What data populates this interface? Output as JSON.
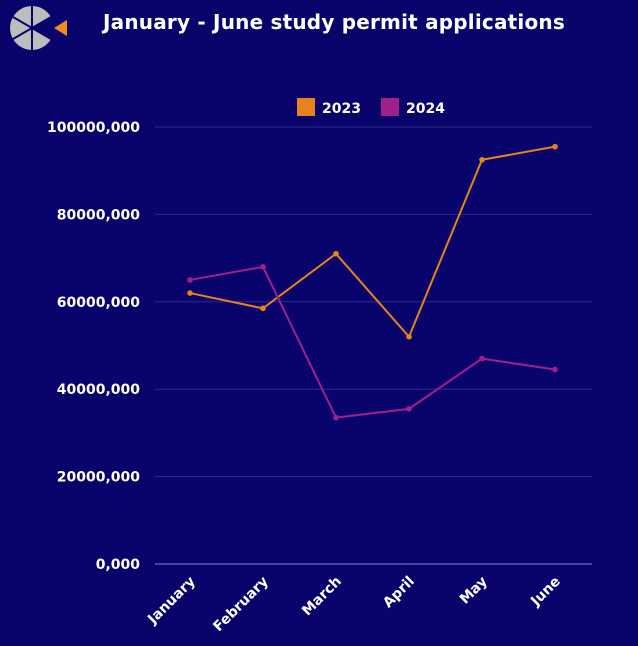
{
  "title": "January - June study permit applications",
  "colors": {
    "background": "#08046b",
    "series_2023": "#e8821c",
    "series_2024": "#a1208a",
    "grid": "#2a2a8a",
    "logo_grey": "#bdbdbd",
    "logo_orange": "#f28a1e"
  },
  "chart_data": {
    "type": "line",
    "title": "January - June study permit applications",
    "categories": [
      "January",
      "February",
      "March",
      "April",
      "May",
      "June"
    ],
    "series": [
      {
        "name": "2023",
        "color": "#e8821c",
        "values": [
          62000000,
          58500000,
          71000000,
          52000000,
          92500000,
          95500000
        ]
      },
      {
        "name": "2024",
        "color": "#a1208a",
        "values": [
          65000000,
          68000000,
          33500000,
          35500000,
          47000000,
          44500000
        ]
      }
    ],
    "yticks": [
      "0,000",
      "20000,000",
      "40000,000",
      "60000,000",
      "80000,000",
      "100000,000"
    ],
    "ytick_values": [
      0,
      20000000,
      40000000,
      60000000,
      80000000,
      100000000
    ],
    "ylim": [
      0,
      100000000
    ],
    "xlabel": "",
    "ylabel": "",
    "grid": true,
    "legend_position": "top-center"
  }
}
